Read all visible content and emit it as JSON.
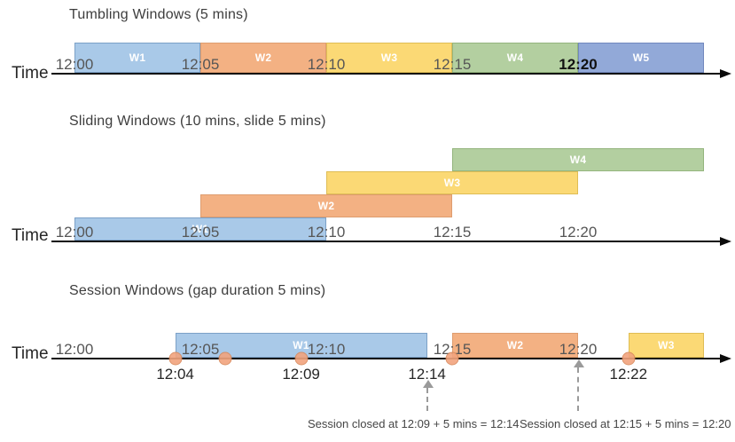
{
  "palette": {
    "blue": "#A9C9E8",
    "orange": "#F3B183",
    "yellow": "#FBD975",
    "green": "#B3CFA0",
    "periwinkle": "#92A9D8",
    "blue_border": "#7CA1C7",
    "orange_border": "#DE9D6F",
    "yellow_border": "#DFBD55",
    "green_border": "#94B57E",
    "periwinkle_border": "#7288BE",
    "event_dot": "#F2A47E",
    "event_dot_border": "#D9895B",
    "timeline": "#0b0b0b",
    "close_arrow": "#9a9a9a"
  },
  "sections": [
    {
      "title": "Tumbling Windows (5 mins)",
      "time_label": "Time",
      "windows": [
        {
          "name": "W1",
          "start": "12:00",
          "end": "12:05",
          "color": "blue"
        },
        {
          "name": "W2",
          "start": "12:05",
          "end": "12:10",
          "color": "orange"
        },
        {
          "name": "W3",
          "start": "12:10",
          "end": "12:15",
          "color": "yellow"
        },
        {
          "name": "W4",
          "start": "12:15",
          "end": "12:20",
          "color": "green"
        },
        {
          "name": "W5",
          "start": "12:20",
          "end": "12:25",
          "color": "periwinkle"
        }
      ],
      "ticks": [
        {
          "label": "12:00"
        },
        {
          "label": "12:05"
        },
        {
          "label": "12:10"
        },
        {
          "label": "12:15"
        },
        {
          "label": "12:20",
          "strong": true
        }
      ]
    },
    {
      "title": "Sliding Windows (10 mins, slide 5 mins)",
      "time_label": "Time",
      "windows": [
        {
          "name": "W1",
          "start": "12:00",
          "end": "12:10",
          "color": "blue",
          "row": 0
        },
        {
          "name": "W2",
          "start": "12:05",
          "end": "12:15",
          "color": "orange",
          "row": 1
        },
        {
          "name": "W3",
          "start": "12:10",
          "end": "12:20",
          "color": "yellow",
          "row": 2
        },
        {
          "name": "W4",
          "start": "12:15",
          "end": "12:25",
          "color": "green",
          "row": 3
        }
      ],
      "ticks": [
        {
          "label": "12:00"
        },
        {
          "label": "12:05"
        },
        {
          "label": "12:10"
        },
        {
          "label": "12:15"
        },
        {
          "label": "12:20"
        }
      ]
    },
    {
      "title": "Session Windows (gap duration 5 mins)",
      "time_label": "Time",
      "windows": [
        {
          "name": "W1",
          "start": "12:04",
          "end": "12:14",
          "color": "blue"
        },
        {
          "name": "W2",
          "start": "12:15",
          "end": "12:20",
          "color": "orange"
        },
        {
          "name": "W3",
          "start": "12:22",
          "end": "12:25",
          "color": "yellow"
        }
      ],
      "ticks": [
        {
          "label": "12:00"
        },
        {
          "label": "12:05"
        },
        {
          "label": "12:10"
        },
        {
          "label": "12:15"
        },
        {
          "label": "12:20"
        }
      ],
      "events": [
        "12:04",
        "12:06",
        "12:09",
        "12:15",
        "12:22"
      ],
      "event_labels": [
        {
          "label": "12:04"
        },
        {
          "label": "12:09"
        },
        {
          "label": "12:14"
        },
        {
          "label": "12:22"
        }
      ],
      "close_arrows": [
        {
          "at": "12:14"
        },
        {
          "at": "12:20"
        }
      ],
      "annotations": [
        {
          "text": "Session closed at 12:09 + 5 mins = 12:14"
        },
        {
          "text": "Session closed at 12:15 + 5 mins = 12:20"
        }
      ]
    }
  ]
}
